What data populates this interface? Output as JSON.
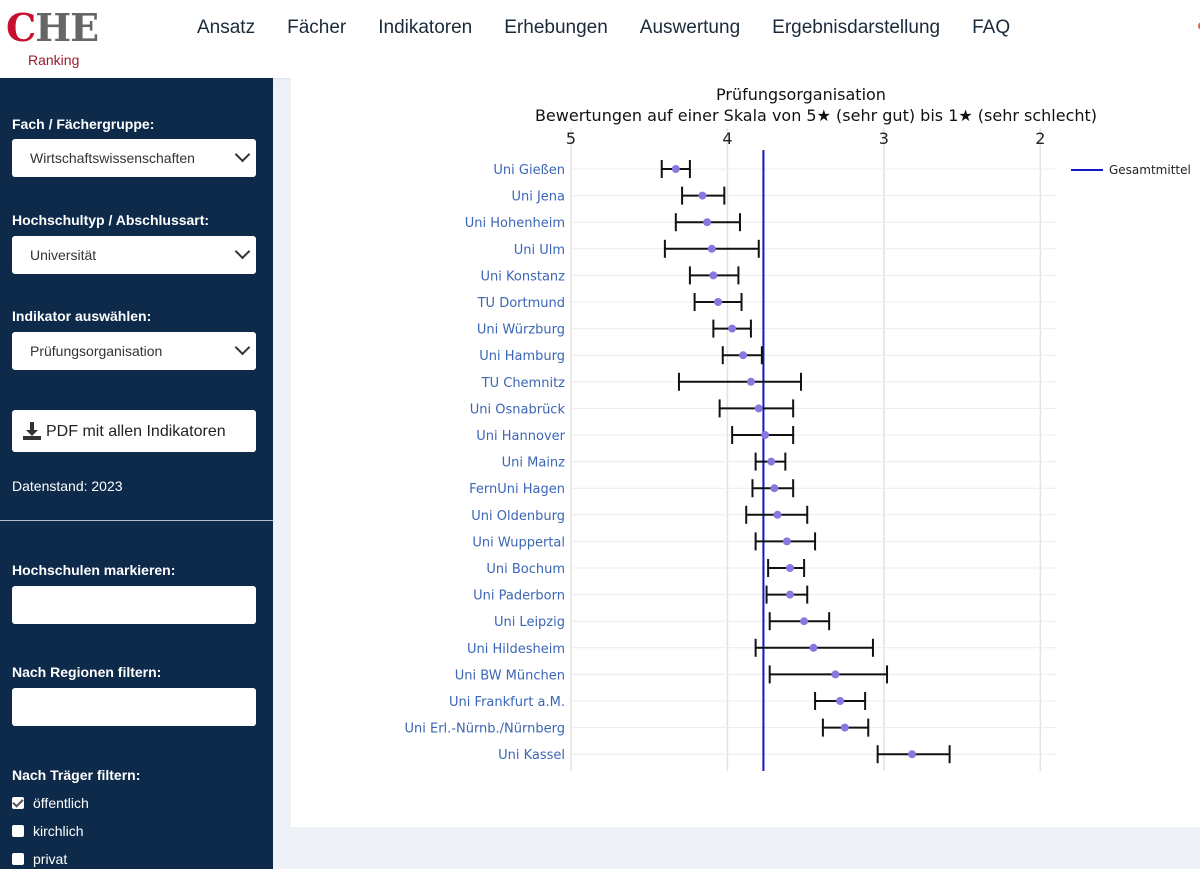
{
  "header": {
    "logo_main_c": "C",
    "logo_main_he": "HE",
    "logo_sub": "Ranking",
    "nav": [
      "Ansatz",
      "Fächer",
      "Indikatoren",
      "Erhebungen",
      "Auswertung",
      "Ergebnisdarstellung",
      "FAQ"
    ]
  },
  "sidebar": {
    "fach_label": "Fach / Fächergruppe:",
    "fach_value": "Wirtschaftswissenschaften",
    "typ_label": "Hochschultyp / Abschlussart:",
    "typ_value": "Universität",
    "indikator_label": "Indikator auswählen:",
    "indikator_value": "Prüfungsorganisation",
    "pdf_label": "PDF mit allen Indikatoren",
    "datenstand": "Datenstand: 2023",
    "markieren_label": "Hochschulen markieren:",
    "regionen_label": "Nach Regionen filtern:",
    "traeger_label": "Nach Träger filtern:",
    "traeger_options": [
      {
        "label": "öffentlich",
        "checked": true
      },
      {
        "label": "kirchlich",
        "checked": false
      },
      {
        "label": "privat",
        "checked": false
      }
    ]
  },
  "colors": {
    "sidebar_bg": "#0d2a4a",
    "mean_line": "#1515c8",
    "point": "#8a77e0",
    "category_text": "#3b66b5"
  },
  "chart_data": {
    "type": "scatter",
    "title": "Prüfungsorganisation",
    "subtitle": "Bewertungen auf einer Skala von 5★ (sehr gut) bis 1★ (sehr schlecht)",
    "x_ticks": [
      "5",
      "4",
      "3",
      "2"
    ],
    "xlim": [
      5.0,
      1.9
    ],
    "x_reversed": true,
    "x_axis_position": "top",
    "grid": true,
    "legend_position": "top-right",
    "mean": {
      "name": "Gesamtmittel",
      "value": 3.77
    },
    "categories": [
      "Uni Gießen",
      "Uni Jena",
      "Uni Hohenheim",
      "Uni Ulm",
      "Uni Konstanz",
      "TU Dortmund",
      "Uni Würzburg",
      "Uni Hamburg",
      "TU Chemnitz",
      "Uni Osnabrück",
      "Uni Hannover",
      "Uni Mainz",
      "FernUni Hagen",
      "Uni Oldenburg",
      "Uni Wuppertal",
      "Uni Bochum",
      "Uni Paderborn",
      "Uni Leipzig",
      "Uni Hildesheim",
      "Uni BW München",
      "Uni Frankfurt a.M.",
      "Uni Erl.-Nürnb./Nürnberg",
      "Uni Kassel"
    ],
    "values": [
      4.33,
      4.16,
      4.13,
      4.1,
      4.09,
      4.06,
      3.97,
      3.9,
      3.85,
      3.8,
      3.76,
      3.72,
      3.7,
      3.68,
      3.62,
      3.6,
      3.6,
      3.51,
      3.45,
      3.31,
      3.28,
      3.25,
      2.82
    ],
    "err_low": [
      4.42,
      4.29,
      4.33,
      4.4,
      4.24,
      4.21,
      4.09,
      4.03,
      4.31,
      4.05,
      3.97,
      3.82,
      3.84,
      3.88,
      3.82,
      3.74,
      3.75,
      3.73,
      3.82,
      3.73,
      3.44,
      3.39,
      3.04
    ],
    "err_high": [
      4.24,
      4.02,
      3.92,
      3.8,
      3.93,
      3.91,
      3.85,
      3.78,
      3.53,
      3.58,
      3.58,
      3.63,
      3.58,
      3.49,
      3.44,
      3.51,
      3.49,
      3.35,
      3.07,
      2.98,
      3.12,
      3.1,
      2.58
    ]
  }
}
